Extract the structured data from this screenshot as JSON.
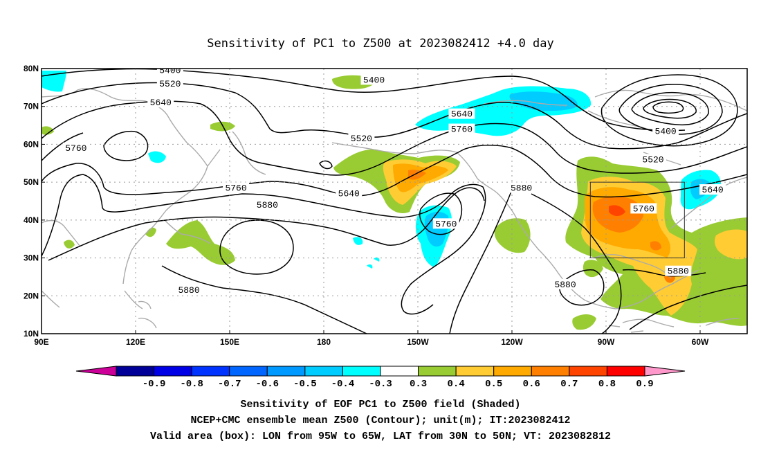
{
  "title": "Sensitivity of PC1 to Z500 at 2023082412 +4.0 day",
  "captions": [
    "Sensitivity of EOF PC1 to Z500 field (Shaded)",
    "NCEP+CMC ensemble mean Z500 (Contour); unit(m); IT:2023082412",
    "Valid area (box): LON from 95W to 65W, LAT from 30N to 50N; VT: 2023082812"
  ],
  "map": {
    "lon_ticks": [
      {
        "lon": 90,
        "label": "90E"
      },
      {
        "lon": 120,
        "label": "120E"
      },
      {
        "lon": 150,
        "label": "150E"
      },
      {
        "lon": 180,
        "label": "180"
      },
      {
        "lon": 210,
        "label": "150W"
      },
      {
        "lon": 240,
        "label": "120W"
      },
      {
        "lon": 270,
        "label": "90W"
      },
      {
        "lon": 300,
        "label": "60W"
      }
    ],
    "lat_ticks": [
      {
        "lat": 10,
        "label": "10N"
      },
      {
        "lat": 20,
        "label": "20N"
      },
      {
        "lat": 30,
        "label": "30N"
      },
      {
        "lat": 40,
        "label": "40N"
      },
      {
        "lat": 50,
        "label": "50N"
      },
      {
        "lat": 60,
        "label": "60N"
      },
      {
        "lat": 70,
        "label": "70N"
      },
      {
        "lat": 80,
        "label": "80N"
      }
    ],
    "lon_range": [
      90,
      315
    ],
    "lat_range": [
      10,
      80
    ],
    "valid_box": {
      "lon_range": [
        265,
        295
      ],
      "lat_range": [
        30,
        50
      ]
    },
    "contour_labels": [
      {
        "text": "5400",
        "lon": 131,
        "lat": 79.5
      },
      {
        "text": "5400",
        "lon": 196,
        "lat": 77
      },
      {
        "text": "5400",
        "lon": 289,
        "lat": 63.5
      },
      {
        "text": "5520",
        "lon": 131,
        "lat": 76
      },
      {
        "text": "5520",
        "lon": 192,
        "lat": 61.5
      },
      {
        "text": "5520",
        "lon": 285,
        "lat": 56
      },
      {
        "text": "5640",
        "lon": 128,
        "lat": 71
      },
      {
        "text": "5640",
        "lon": 224,
        "lat": 68
      },
      {
        "text": "5640",
        "lon": 188,
        "lat": 47
      },
      {
        "text": "5640",
        "lon": 304,
        "lat": 48
      },
      {
        "text": "5760",
        "lon": 101,
        "lat": 59
      },
      {
        "text": "5760",
        "lon": 152,
        "lat": 48.5
      },
      {
        "text": "5760",
        "lon": 224,
        "lat": 64
      },
      {
        "text": "5760",
        "lon": 219,
        "lat": 39
      },
      {
        "text": "5760",
        "lon": 282,
        "lat": 43
      },
      {
        "text": "5880",
        "lon": 162,
        "lat": 44
      },
      {
        "text": "5880",
        "lon": 137,
        "lat": 21.5
      },
      {
        "text": "5880",
        "lon": 257,
        "lat": 23
      },
      {
        "text": "5880",
        "lon": 243,
        "lat": 48.5
      },
      {
        "text": "5880",
        "lon": 293,
        "lat": 26.5
      }
    ]
  },
  "colorbar": {
    "colors": [
      "#cc0099",
      "#000099",
      "#0000e6",
      "#0033ff",
      "#0066ff",
      "#0099ff",
      "#00ccff",
      "#00ffff",
      "#ffffff",
      "#99cc33",
      "#ffcc33",
      "#ffaa00",
      "#ff8000",
      "#ff4400",
      "#ff0000",
      "#ff99cc"
    ],
    "labels": [
      "-0.9",
      "-0.8",
      "-0.7",
      "-0.6",
      "-0.5",
      "-0.4",
      "-0.3",
      "0.3",
      "0.4",
      "0.5",
      "0.6",
      "0.7",
      "0.8",
      "0.9"
    ]
  },
  "shade_colors": {
    "green": "#99cc33",
    "yellow": "#ffcc33",
    "orange": "#ffaa00",
    "red_orange": "#ff8000",
    "red": "#ff4400",
    "light_blue": "#00ccff",
    "cyan": "#00ffff"
  }
}
